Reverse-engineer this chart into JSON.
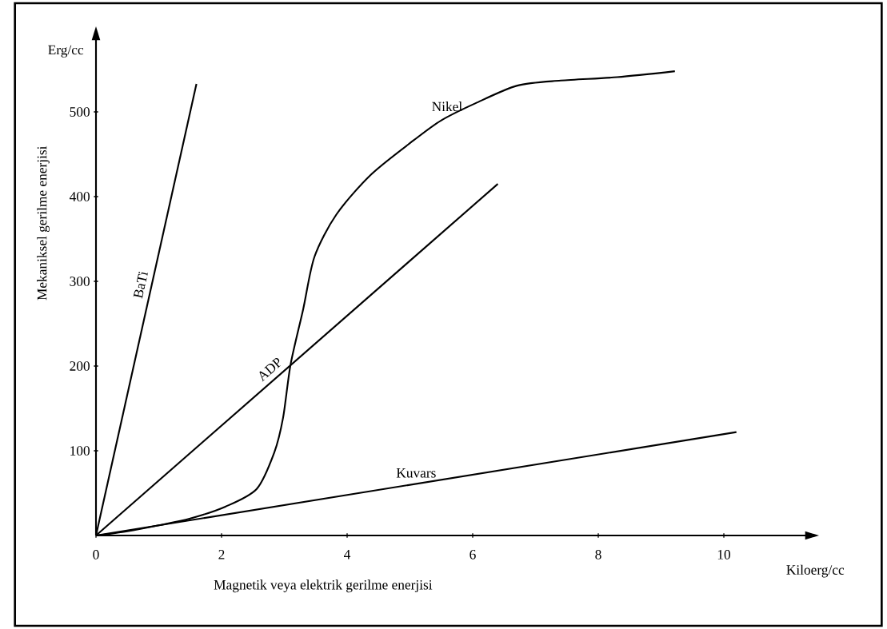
{
  "chart_data": {
    "type": "line",
    "xlabel": "Magnetik veya elektrik gerilme enerjisi",
    "ylabel": "Mekaniksel gerilme enerjisi",
    "annotations": [
      "Erg/cc",
      "Kiloerg/cc"
    ],
    "xlim": [
      0,
      11.3
    ],
    "ylim": [
      0,
      585
    ],
    "xticks": [
      0,
      2,
      4,
      6,
      8,
      10
    ],
    "yticks": [
      100,
      200,
      300,
      400,
      500
    ],
    "series": [
      {
        "name": "BaTi",
        "color": "#000000",
        "x": [
          0,
          1.6
        ],
        "values": [
          0,
          533
        ]
      },
      {
        "name": "ADP",
        "color": "#000000",
        "x": [
          0,
          6.4
        ],
        "values": [
          0,
          415
        ]
      },
      {
        "name": "Nikel",
        "color": "#000000",
        "x": [
          0,
          0.5,
          1,
          1.5,
          2.06,
          2.56,
          2.84,
          2.98,
          3.1,
          3.3,
          3.48,
          3.83,
          4.38,
          5.07,
          5.5,
          6.04,
          6.71,
          7.4,
          8.3,
          9.22
        ],
        "values": [
          0,
          5,
          12,
          20,
          34,
          55,
          98,
          139,
          202,
          267,
          329,
          379,
          426,
          467,
          490,
          510,
          531,
          537,
          541,
          548
        ]
      },
      {
        "name": "Kuvars",
        "color": "#000000",
        "x": [
          0,
          10.2
        ],
        "values": [
          0,
          122
        ]
      }
    ],
    "grid": false,
    "legend": false,
    "marker": "none",
    "line_style": "solid"
  }
}
